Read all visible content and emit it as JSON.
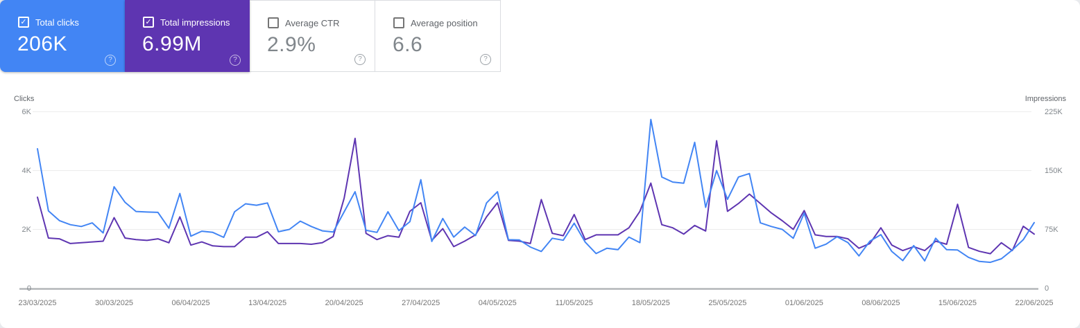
{
  "cards": [
    {
      "label": "Total clicks",
      "value": "206K",
      "checked": true,
      "bg": "#4285f4"
    },
    {
      "label": "Total impressions",
      "value": "6.99M",
      "checked": true,
      "bg": "#5e35b1"
    },
    {
      "label": "Average CTR",
      "value": "2.9%",
      "checked": false,
      "bg": "#ffffff"
    },
    {
      "label": "Average position",
      "value": "6.6",
      "checked": false,
      "bg": "#ffffff"
    }
  ],
  "chart_data": {
    "type": "line",
    "granularity": "daily",
    "x_labels": [
      "23/03/2025",
      "30/03/2025",
      "06/04/2025",
      "13/04/2025",
      "20/04/2025",
      "27/04/2025",
      "04/05/2025",
      "11/05/2025",
      "18/05/2025",
      "25/05/2025",
      "01/06/2025",
      "08/06/2025",
      "15/06/2025",
      "22/06/2025"
    ],
    "left_axis": {
      "label": "Clicks",
      "ticks": [
        "6K",
        "4K",
        "2K",
        "0"
      ],
      "max": 6000
    },
    "right_axis": {
      "label": "Impressions",
      "ticks": [
        "225K",
        "150K",
        "75K",
        "0"
      ],
      "max": 225000
    },
    "series": [
      {
        "name": "Clicks",
        "axis": "left",
        "color": "#4285f4",
        "values": [
          4740,
          2630,
          2300,
          2160,
          2100,
          2220,
          1880,
          3450,
          2920,
          2610,
          2590,
          2580,
          2040,
          3220,
          1770,
          1940,
          1900,
          1730,
          2600,
          2870,
          2820,
          2900,
          1920,
          2000,
          2280,
          2100,
          1950,
          1910,
          2600,
          3280,
          1970,
          1900,
          2600,
          1960,
          2260,
          3690,
          1590,
          2370,
          1740,
          2080,
          1790,
          2900,
          3280,
          1650,
          1640,
          1400,
          1250,
          1700,
          1630,
          2210,
          1570,
          1180,
          1360,
          1310,
          1740,
          1550,
          5740,
          3780,
          3610,
          3570,
          4960,
          2750,
          4000,
          3020,
          3780,
          3900,
          2220,
          2100,
          2000,
          1700,
          2550,
          1360,
          1500,
          1750,
          1550,
          1100,
          1600,
          1820,
          1250,
          940,
          1450,
          930,
          1700,
          1310,
          1300,
          1050,
          910,
          880,
          1000,
          1300,
          1650,
          2230
        ]
      },
      {
        "name": "Impressions",
        "axis": "right",
        "color": "#5e35b1",
        "values": [
          116000,
          64000,
          63000,
          57000,
          58000,
          59000,
          60000,
          90000,
          64000,
          62000,
          61000,
          63000,
          58000,
          91000,
          55000,
          59000,
          54000,
          53000,
          53000,
          65000,
          65000,
          72000,
          57000,
          57000,
          57000,
          56000,
          58000,
          66000,
          115000,
          191000,
          70000,
          62000,
          67000,
          65000,
          98000,
          109000,
          61000,
          76000,
          53000,
          60000,
          68000,
          91000,
          109000,
          61000,
          60000,
          57000,
          113000,
          70000,
          67000,
          94000,
          62000,
          68000,
          68000,
          68000,
          77000,
          98000,
          134000,
          81000,
          77000,
          69000,
          80000,
          73000,
          188000,
          98000,
          108000,
          120000,
          108000,
          96000,
          86000,
          75000,
          99000,
          68000,
          66000,
          66000,
          63000,
          51000,
          57000,
          77000,
          55000,
          48000,
          53000,
          48000,
          60000,
          56000,
          107000,
          52000,
          47000,
          44000,
          58000,
          48000,
          79000,
          69000
        ]
      }
    ]
  }
}
